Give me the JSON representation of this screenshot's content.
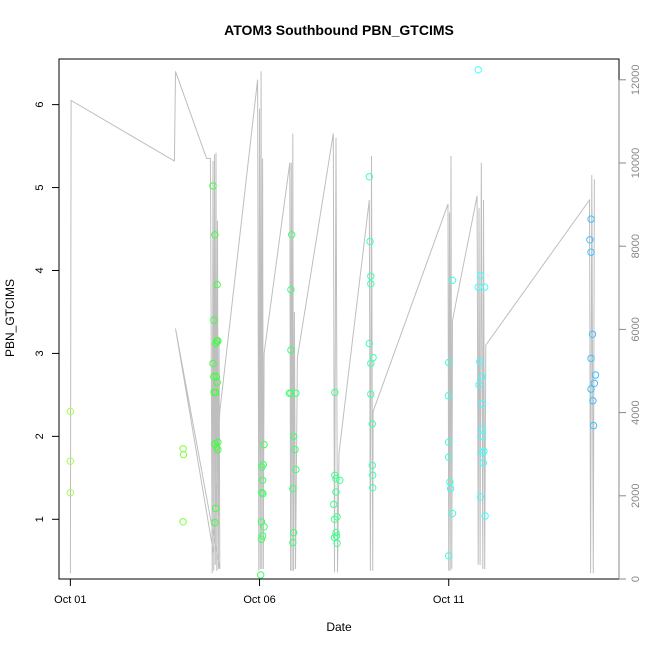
{
  "chart_data": {
    "type": "scatter",
    "title": "ATOM3 Southbound PBN_GTCIMS",
    "xlabel": "Date",
    "ylabel": "PBN_GTCIMS",
    "x_unit": "days",
    "x_ticks": [
      {
        "label": "Oct 01",
        "day": 1
      },
      {
        "label": "Oct 06",
        "day": 6
      },
      {
        "label": "Oct 11",
        "day": 11
      }
    ],
    "xlim": [
      0.7,
      15.5
    ],
    "ylim": [
      0.28,
      6.55
    ],
    "y_ticks": [
      1,
      2,
      3,
      4,
      5,
      6
    ],
    "y2_ticks": [
      0,
      2000,
      4000,
      6000,
      8000,
      10000,
      12000
    ],
    "y2lim": [
      0,
      12500
    ],
    "grid": false,
    "legend": "none",
    "colors": {
      "line": "#bebebe",
      "axis": "#000000",
      "right_axis": "#888888"
    },
    "series": [
      {
        "color": "#a6ff4d",
        "points": [
          [
            1.0,
            2.3
          ],
          [
            1.0,
            1.7
          ],
          [
            1.0,
            1.32
          ]
        ]
      },
      {
        "color": "#80ff40",
        "points": [
          [
            3.98,
            1.85
          ],
          [
            3.99,
            1.78
          ],
          [
            3.98,
            0.97
          ]
        ]
      },
      {
        "color": "#40ff40",
        "points": [
          [
            4.77,
            5.02
          ],
          [
            4.82,
            4.43
          ],
          [
            4.88,
            3.83
          ],
          [
            4.79,
            3.4
          ],
          [
            4.84,
            3.12
          ],
          [
            4.87,
            3.15
          ],
          [
            4.9,
            3.15
          ],
          [
            4.77,
            2.88
          ],
          [
            4.79,
            2.72
          ],
          [
            4.86,
            2.72
          ],
          [
            4.88,
            2.65
          ],
          [
            4.8,
            2.53
          ],
          [
            4.84,
            2.53
          ],
          [
            4.82,
            1.91
          ],
          [
            4.9,
            1.93
          ],
          [
            4.87,
            1.87
          ],
          [
            4.9,
            1.84
          ],
          [
            4.84,
            1.13
          ],
          [
            4.82,
            0.96
          ]
        ]
      },
      {
        "color": "#40ff60",
        "points": [
          [
            6.03,
            0.33
          ],
          [
            6.05,
            0.76
          ],
          [
            6.08,
            0.8
          ],
          [
            6.05,
            0.97
          ],
          [
            6.12,
            0.91
          ],
          [
            6.06,
            1.32
          ],
          [
            6.09,
            1.31
          ],
          [
            6.08,
            1.47
          ],
          [
            6.06,
            1.63
          ],
          [
            6.1,
            1.66
          ],
          [
            6.12,
            1.9
          ]
        ]
      },
      {
        "color": "#40ff70",
        "points": [
          [
            6.85,
            4.43
          ],
          [
            6.83,
            3.77
          ],
          [
            6.83,
            3.04
          ],
          [
            6.79,
            2.52
          ],
          [
            6.83,
            2.52
          ],
          [
            6.96,
            2.52
          ],
          [
            6.9,
            2.0
          ],
          [
            6.94,
            1.84
          ],
          [
            6.96,
            1.6
          ],
          [
            6.88,
            1.37
          ],
          [
            6.9,
            0.84
          ],
          [
            6.88,
            0.72
          ]
        ]
      },
      {
        "color": "#40ff90",
        "points": [
          [
            7.99,
            2.53
          ],
          [
            7.99,
            1.53
          ],
          [
            8.02,
            1.49
          ],
          [
            8.02,
            1.33
          ],
          [
            8.12,
            1.47
          ],
          [
            7.96,
            1.18
          ],
          [
            8.05,
            1.03
          ],
          [
            7.98,
            1.0
          ],
          [
            8.02,
            0.84
          ],
          [
            7.98,
            0.78
          ],
          [
            8.03,
            0.8
          ],
          [
            8.05,
            0.71
          ]
        ]
      },
      {
        "color": "#40ffb0",
        "points": [
          [
            8.9,
            5.13
          ],
          [
            8.92,
            4.35
          ],
          [
            8.94,
            3.93
          ],
          [
            8.94,
            3.84
          ],
          [
            8.9,
            3.12
          ],
          [
            9.0,
            2.95
          ],
          [
            8.94,
            2.88
          ],
          [
            8.94,
            2.51
          ],
          [
            8.98,
            2.15
          ],
          [
            8.98,
            1.65
          ],
          [
            8.99,
            1.53
          ],
          [
            8.99,
            1.38
          ]
        ]
      },
      {
        "color": "#40ffe0",
        "points": [
          [
            11.1,
            3.88
          ],
          [
            11.0,
            2.89
          ],
          [
            10.99,
            2.49
          ],
          [
            11.0,
            1.93
          ],
          [
            11.0,
            1.75
          ],
          [
            11.03,
            1.45
          ],
          [
            11.05,
            1.37
          ],
          [
            11.1,
            1.07
          ],
          [
            11.0,
            0.56
          ]
        ]
      },
      {
        "color": "#40ffff",
        "points": [
          [
            11.78,
            6.42
          ],
          [
            11.84,
            3.94
          ],
          [
            11.78,
            3.8
          ],
          [
            11.95,
            3.8
          ],
          [
            11.82,
            2.9
          ],
          [
            11.8,
            2.62
          ],
          [
            11.88,
            2.72
          ],
          [
            11.89,
            2.39
          ],
          [
            11.89,
            2.09
          ],
          [
            11.89,
            2.0
          ],
          [
            11.93,
            1.82
          ],
          [
            11.89,
            1.8
          ],
          [
            11.91,
            1.68
          ],
          [
            11.84,
            1.27
          ],
          [
            11.96,
            1.04
          ]
        ]
      },
      {
        "color": "#40c0ff",
        "points": [
          [
            14.76,
            4.62
          ],
          [
            14.73,
            4.37
          ],
          [
            14.76,
            4.22
          ],
          [
            14.8,
            3.23
          ],
          [
            14.76,
            2.94
          ],
          [
            14.88,
            2.74
          ],
          [
            14.85,
            2.64
          ],
          [
            14.76,
            2.57
          ],
          [
            14.81,
            2.43
          ],
          [
            14.83,
            2.13
          ]
        ]
      }
    ],
    "line_series": {
      "color": "#bebebe",
      "points": [
        [
          1.0,
          0.35
        ],
        [
          1.02,
          6.05
        ],
        [
          3.75,
          5.32
        ],
        [
          3.78,
          6.4
        ],
        [
          4.6,
          5.35
        ],
        [
          4.7,
          5.35
        ],
        [
          4.75,
          0.35
        ],
        [
          4.77,
          5.32
        ],
        [
          4.79,
          0.38
        ],
        [
          4.81,
          5.4
        ],
        [
          4.83,
          0.45
        ],
        [
          4.85,
          5.42
        ],
        [
          4.87,
          0.38
        ],
        [
          4.89,
          4.6
        ],
        [
          4.91,
          0.4
        ],
        [
          4.93,
          3.2
        ],
        [
          4.95,
          0.4
        ],
        [
          3.78,
          3.3
        ],
        [
          4.78,
          0.6
        ],
        [
          4.95,
          2.3
        ],
        [
          5.95,
          6.3
        ],
        [
          5.98,
          0.38
        ],
        [
          6.0,
          5.95
        ],
        [
          6.02,
          0.4
        ],
        [
          6.04,
          6.4
        ],
        [
          6.06,
          0.4
        ],
        [
          6.08,
          5.35
        ],
        [
          6.1,
          0.4
        ],
        [
          6.12,
          3.0
        ],
        [
          6.8,
          5.3
        ],
        [
          6.82,
          0.38
        ],
        [
          6.84,
          5.3
        ],
        [
          6.86,
          0.38
        ],
        [
          6.88,
          5.65
        ],
        [
          6.9,
          0.38
        ],
        [
          6.92,
          3.5
        ],
        [
          6.95,
          0.4
        ],
        [
          7.0,
          2.95
        ],
        [
          7.95,
          5.65
        ],
        [
          7.98,
          0.36
        ],
        [
          8.02,
          5.6
        ],
        [
          8.06,
          0.36
        ],
        [
          8.1,
          1.8
        ],
        [
          8.9,
          4.85
        ],
        [
          8.93,
          0.38
        ],
        [
          8.96,
          5.38
        ],
        [
          8.99,
          0.38
        ],
        [
          9.0,
          2.3
        ],
        [
          10.98,
          4.8
        ],
        [
          11.0,
          0.38
        ],
        [
          11.02,
          4.7
        ],
        [
          11.04,
          0.38
        ],
        [
          11.06,
          5.38
        ],
        [
          11.08,
          0.4
        ],
        [
          11.1,
          3.4
        ],
        [
          11.75,
          4.9
        ],
        [
          11.78,
          0.45
        ],
        [
          11.8,
          4.75
        ],
        [
          11.83,
          0.45
        ],
        [
          11.86,
          5.3
        ],
        [
          11.9,
          0.4
        ],
        [
          11.92,
          4.85
        ],
        [
          11.95,
          0.4
        ],
        [
          11.98,
          3.1
        ],
        [
          14.72,
          4.85
        ],
        [
          14.75,
          0.35
        ],
        [
          14.78,
          5.15
        ],
        [
          14.82,
          0.35
        ],
        [
          14.85,
          5.1
        ]
      ]
    }
  }
}
